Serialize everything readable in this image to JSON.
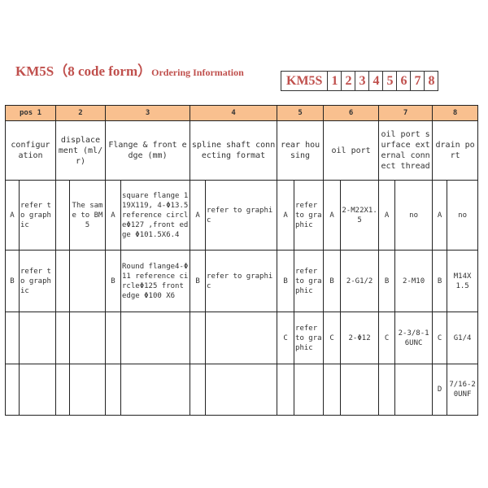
{
  "title": {
    "main": "KM5S（8 code form）",
    "sub": "Ordering Information"
  },
  "code_boxes": [
    "KM5S",
    "1",
    "2",
    "3",
    "4",
    "5",
    "6",
    "7",
    "8"
  ],
  "header_colors": {
    "title": "#c0504d",
    "header_bg": "#f9c08f"
  },
  "positions": [
    "pos 1",
    "2",
    "3",
    "4",
    "5",
    "6",
    "7",
    "8"
  ],
  "descriptions": [
    "configur ation",
    "displace ment (ml/r)",
    "Flange & front edge (mm)",
    "spline shaft connecting format",
    "rear housing",
    "oil port",
    "oil port surface external connect thread",
    "drain port"
  ],
  "rows": [
    [
      [
        "A",
        "refer to graphic"
      ],
      [
        "",
        "The same to BM5"
      ],
      [
        "A",
        "square flange 119X119, 4-Φ13.5 reference circleΦ127 ,front edge Φ101.5X6.4"
      ],
      [
        "A",
        "refer to graphic"
      ],
      [
        "A",
        "refer to graphic"
      ],
      [
        "A",
        "2-M22X1.5"
      ],
      [
        "A",
        "no"
      ],
      [
        "A",
        "no"
      ]
    ],
    [
      [
        "B",
        "refer to graphic"
      ],
      [
        "",
        ""
      ],
      [
        "B",
        "Round flange4-Φ11 reference circleΦ125 front edge Φ100 X6"
      ],
      [
        "B",
        "refer to graphic"
      ],
      [
        "B",
        "refer to graphic"
      ],
      [
        "B",
        "2-G1/2"
      ],
      [
        "B",
        "2-M10"
      ],
      [
        "B",
        "M14X 1.5"
      ]
    ],
    [
      [
        "",
        ""
      ],
      [
        "",
        ""
      ],
      [
        "",
        ""
      ],
      [
        "",
        ""
      ],
      [
        "C",
        "refer to graphic"
      ],
      [
        "C",
        "2-Φ12"
      ],
      [
        "C",
        "2-3/8-16UNC"
      ],
      [
        "C",
        "G1/4"
      ]
    ],
    [
      [
        "",
        ""
      ],
      [
        "",
        ""
      ],
      [
        "",
        ""
      ],
      [
        "",
        ""
      ],
      [
        "",
        ""
      ],
      [
        "",
        ""
      ],
      [
        "",
        ""
      ],
      [
        "D",
        "7/16-20UNF"
      ]
    ]
  ]
}
